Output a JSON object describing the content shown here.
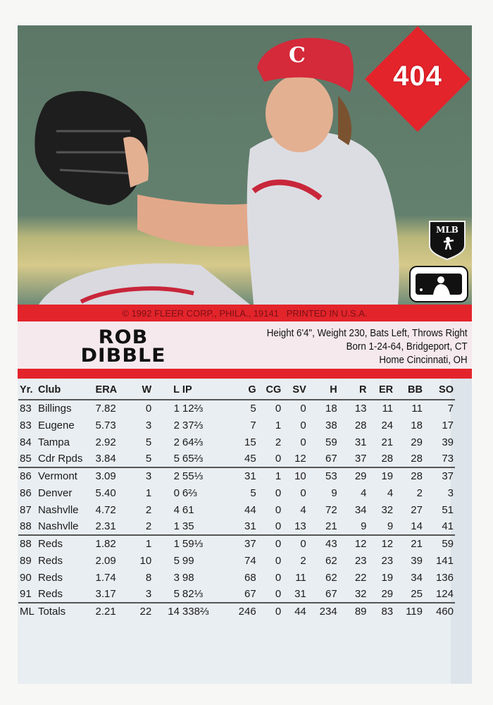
{
  "card": {
    "number": "404",
    "copyright": "© 1992 FLEER CORP., PHILA., 19141   PRINTED IN U.S.A.",
    "player_first": "ROB",
    "player_last": "DIBBLE",
    "bio_line1": "Height 6'4\", Weight 230, Bats Left, Throws Right",
    "bio_line2": "Born 1-24-64, Bridgeport, CT",
    "bio_line3": "Home Cincinnati, OH",
    "logo_mlb": "MLB",
    "logo_license": "OFFICIAL LICENSEE MAJOR LEAGUE BASEBALL",
    "colors": {
      "red": "#e3242b",
      "name_band": "#f5e9ee",
      "table_bg": "#e9eef2"
    }
  },
  "stats": {
    "headers": [
      "Yr.",
      "Club",
      "ERA",
      "W",
      "L",
      "IP",
      "G",
      "CG",
      "SV",
      "H",
      "R",
      "ER",
      "BB",
      "SO"
    ],
    "groups": [
      [
        [
          "83",
          "Billings",
          "7.82",
          "0",
          "1",
          "12⅔",
          "5",
          "0",
          "0",
          "18",
          "13",
          "11",
          "11",
          "7"
        ],
        [
          "83",
          "Eugene",
          "5.73",
          "3",
          "2",
          "37⅔",
          "7",
          "1",
          "0",
          "38",
          "28",
          "24",
          "18",
          "17"
        ],
        [
          "84",
          "Tampa",
          "2.92",
          "5",
          "2",
          "64⅔",
          "15",
          "2",
          "0",
          "59",
          "31",
          "21",
          "29",
          "39"
        ],
        [
          "85",
          "Cdr Rpds",
          "3.84",
          "5",
          "5",
          "65⅔",
          "45",
          "0",
          "12",
          "67",
          "37",
          "28",
          "28",
          "73"
        ]
      ],
      [
        [
          "86",
          "Vermont",
          "3.09",
          "3",
          "2",
          "55⅓",
          "31",
          "1",
          "10",
          "53",
          "29",
          "19",
          "28",
          "37"
        ],
        [
          "86",
          "Denver",
          "5.40",
          "1",
          "0",
          "6⅔",
          "5",
          "0",
          "0",
          "9",
          "4",
          "4",
          "2",
          "3"
        ],
        [
          "87",
          "Nashvlle",
          "4.72",
          "2",
          "4",
          "61",
          "44",
          "0",
          "4",
          "72",
          "34",
          "32",
          "27",
          "51"
        ],
        [
          "88",
          "Nashvlle",
          "2.31",
          "2",
          "1",
          "35",
          "31",
          "0",
          "13",
          "21",
          "9",
          "9",
          "14",
          "41"
        ]
      ],
      [
        [
          "88",
          "Reds",
          "1.82",
          "1",
          "1",
          "59⅓",
          "37",
          "0",
          "0",
          "43",
          "12",
          "12",
          "21",
          "59"
        ],
        [
          "89",
          "Reds",
          "2.09",
          "10",
          "5",
          "99",
          "74",
          "0",
          "2",
          "62",
          "23",
          "23",
          "39",
          "141"
        ],
        [
          "90",
          "Reds",
          "1.74",
          "8",
          "3",
          "98",
          "68",
          "0",
          "11",
          "62",
          "22",
          "19",
          "34",
          "136"
        ],
        [
          "91",
          "Reds",
          "3.17",
          "3",
          "5",
          "82⅓",
          "67",
          "0",
          "31",
          "67",
          "32",
          "29",
          "25",
          "124"
        ]
      ]
    ],
    "totals": [
      "ML",
      "Totals",
      "2.21",
      "22",
      "14",
      "338⅔",
      "246",
      "0",
      "44",
      "234",
      "89",
      "83",
      "119",
      "460"
    ]
  }
}
